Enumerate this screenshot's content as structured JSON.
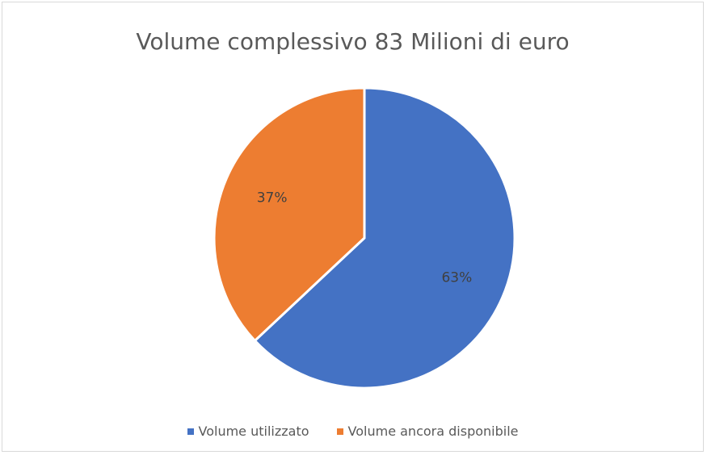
{
  "chart_data": {
    "type": "pie",
    "title": "Volume complessivo 83 Milioni di euro",
    "legend_position": "bottom",
    "slices": [
      {
        "name": "Volume utilizzato",
        "value": 63,
        "label": "63%",
        "color": "#4472C4"
      },
      {
        "name": "Volume ancora disponibile",
        "value": 37,
        "label": "37%",
        "color": "#ED7D31"
      }
    ],
    "start_angle_deg": 0,
    "direction": "clockwise"
  }
}
